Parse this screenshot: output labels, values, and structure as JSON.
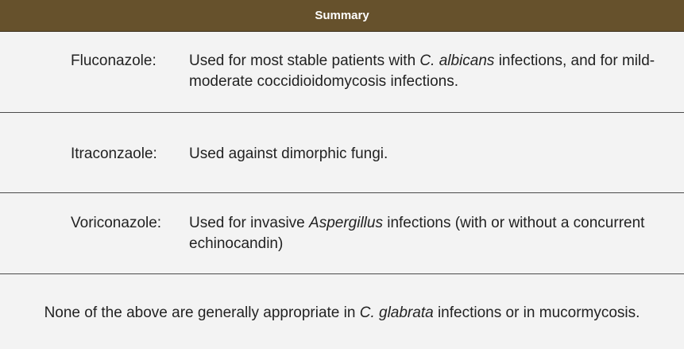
{
  "header": {
    "title": "Summary"
  },
  "rows": [
    {
      "term": "Fluconazole:",
      "desc_pre": "Used for most stable patients with ",
      "desc_em": "C. albicans",
      "desc_post": " infections, and for mild-moderate coccidioidomycosis infections."
    },
    {
      "term": "Itraconzaole:",
      "desc_pre": "Used against dimorphic fungi.",
      "desc_em": "",
      "desc_post": ""
    },
    {
      "term": "Voriconazole:",
      "desc_pre": "Used for invasive ",
      "desc_em": "Aspergillus",
      "desc_post": " infections (with or without a concurrent echinocandin)"
    }
  ],
  "footer": {
    "pre": "None of the above are generally appropriate in ",
    "em": "C. glabrata",
    "post": " infections or in mucormycosis."
  },
  "colors": {
    "header_background": "#66512c",
    "header_text": "#ffffff",
    "page_background": "#f3f3f3",
    "body_text": "#222222"
  }
}
